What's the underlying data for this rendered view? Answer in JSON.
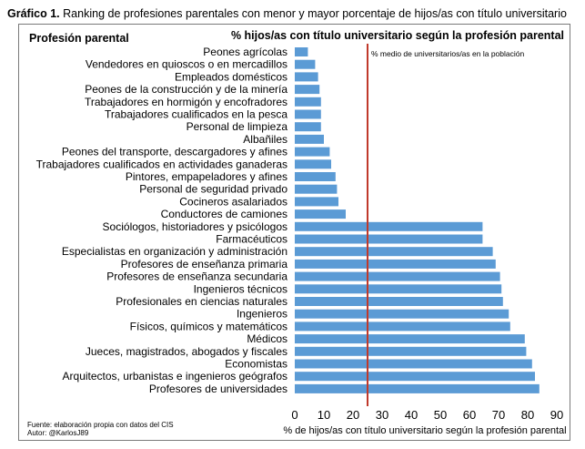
{
  "header": {
    "title_bold": "Gráfico 1.",
    "title_text": "Ranking de profesiones parentales con menor y mayor porcentaje de hijos/as con título universitario"
  },
  "footer": {
    "source": "Fuente: elaboración propia con datos del CIS",
    "author": "Autor: @KarlosJ89"
  },
  "chart_data": {
    "type": "bar",
    "orientation": "horizontal",
    "title": "% hijos/as con título universitario según la profesión parental",
    "category_header": "Profesión parental",
    "xlabel": "% de hijos/as con título universitario según la profesión parental",
    "xlim": [
      0,
      90
    ],
    "xticks": [
      0,
      10,
      20,
      30,
      40,
      50,
      60,
      70,
      80,
      90
    ],
    "grid": false,
    "bar_color": "#5b9bd5",
    "reference_line": {
      "value": 25,
      "label": "% medio de universitarios/as en la población",
      "color": "#c0392b"
    },
    "categories": [
      "Peones agrícolas",
      "Vendedores en quioscos o en mercadillos",
      "Empleados domésticos",
      "Peones de la construcción y de la minería",
      "Trabajadores en hormigón y encofradores",
      "Trabajadores cualificados en la pesca",
      "Personal de limpieza",
      "Albañiles",
      "Peones del transporte, descargadores y afines",
      "Trabajadores cualificados en actividades ganaderas",
      "Pintores, empapeladores y afines",
      "Personal de seguridad privado",
      "Cocineros asalariados",
      "Conductores de camiones",
      "Sociólogos, historiadores y psicólogos",
      "Farmacéuticos",
      "Especialistas en organización y administración",
      "Profesores de enseñanza primaria",
      "Profesores de enseñanza secundaria",
      "Ingenieros técnicos",
      "Profesionales en ciencias naturales",
      "Ingenieros",
      "Físicos, químicos y matemáticos",
      "Médicos",
      "Jueces, magistrados, abogados y fiscales",
      "Economistas",
      "Arquitectos, urbanistas e ingenieros geógrafos",
      "Profesores de universidades"
    ],
    "values": [
      4.5,
      7,
      8,
      8.5,
      9,
      9,
      9,
      10,
      12,
      12.5,
      14,
      14.5,
      15,
      17.5,
      64.5,
      64.5,
      68,
      69,
      70.5,
      71,
      71.5,
      73.5,
      74,
      79,
      79.5,
      81.5,
      82.5,
      84
    ]
  }
}
